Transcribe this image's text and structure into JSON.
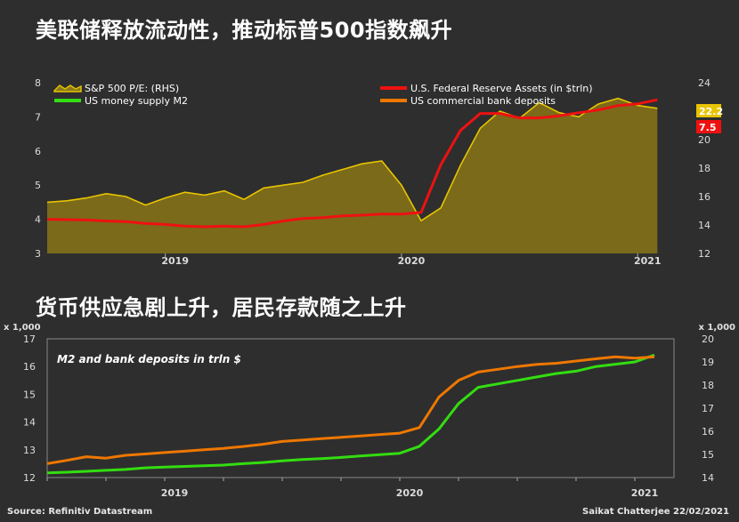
{
  "chart_data": [
    {
      "type": "area",
      "title": "美联储释放流动性，推动标普500指数飙升",
      "x_labels": [
        "2019",
        "2020",
        "2021"
      ],
      "left_axis": {
        "ticks": [
          3,
          4,
          5,
          6,
          7,
          8
        ],
        "ylim": [
          3,
          8
        ]
      },
      "right_axis": {
        "ticks": [
          12,
          14,
          16,
          18,
          20,
          22,
          24
        ],
        "ylim": [
          12,
          24
        ]
      },
      "last_value_badges": [
        {
          "text": "22.2",
          "color": "#e8c400"
        },
        {
          "text": "7.5",
          "color": "#ee1111"
        }
      ],
      "x": [
        "2018-07",
        "2018-08",
        "2018-09",
        "2018-10",
        "2018-11",
        "2018-12",
        "2019-01",
        "2019-02",
        "2019-03",
        "2019-04",
        "2019-05",
        "2019-06",
        "2019-07",
        "2019-08",
        "2019-09",
        "2019-10",
        "2019-11",
        "2019-12",
        "2020-01",
        "2020-02",
        "2020-03",
        "2020-04",
        "2020-05",
        "2020-06",
        "2020-07",
        "2020-08",
        "2020-09",
        "2020-10",
        "2020-11",
        "2020-12",
        "2021-01",
        "2021-02"
      ],
      "series": [
        {
          "name": "S&P 500 P/E: (RHS)",
          "type": "area",
          "axis": "right",
          "color": "#e8c400",
          "values": [
            15.6,
            15.7,
            15.9,
            16.2,
            16.0,
            15.4,
            15.9,
            16.3,
            16.1,
            16.4,
            15.8,
            16.6,
            16.8,
            17.0,
            17.5,
            17.9,
            18.3,
            18.5,
            16.8,
            14.3,
            15.2,
            18.2,
            20.8,
            22.0,
            21.5,
            22.6,
            21.9,
            21.6,
            22.5,
            22.9,
            22.4,
            22.2
          ]
        },
        {
          "name": "U.S. Federal Reserve Assets (in $trln)",
          "type": "line",
          "axis": "left",
          "color": "#ee1111",
          "values": [
            4.0,
            3.99,
            3.98,
            3.95,
            3.93,
            3.88,
            3.85,
            3.8,
            3.78,
            3.8,
            3.78,
            3.85,
            3.95,
            4.02,
            4.05,
            4.1,
            4.12,
            4.15,
            4.15,
            4.2,
            5.6,
            6.6,
            7.1,
            7.1,
            6.97,
            6.97,
            7.03,
            7.12,
            7.2,
            7.33,
            7.38,
            7.5
          ]
        }
      ],
      "legend_only": [
        {
          "name": "US money supply M2",
          "color": "#33dd11"
        },
        {
          "name": "US commercial bank deposits",
          "color": "#ee7700"
        }
      ]
    },
    {
      "type": "line",
      "title": "货币供应急剧上升，居民存款随之上升",
      "annotation": "M2 and bank deposits in trln $",
      "left_axis_unit": "x 1,000",
      "right_axis_unit": "x 1,000",
      "left_axis": {
        "ticks": [
          12,
          13,
          14,
          15,
          16,
          17
        ],
        "ylim": [
          12,
          17
        ]
      },
      "right_axis": {
        "ticks": [
          14,
          15,
          16,
          17,
          18,
          19,
          20
        ],
        "ylim": [
          14,
          20
        ]
      },
      "x_labels": [
        "2019",
        "2020",
        "2021"
      ],
      "x": [
        "2018-07",
        "2018-08",
        "2018-09",
        "2018-10",
        "2018-11",
        "2018-12",
        "2019-01",
        "2019-02",
        "2019-03",
        "2019-04",
        "2019-05",
        "2019-06",
        "2019-07",
        "2019-08",
        "2019-09",
        "2019-10",
        "2019-11",
        "2019-12",
        "2020-01",
        "2020-02",
        "2020-03",
        "2020-04",
        "2020-05",
        "2020-06",
        "2020-07",
        "2020-08",
        "2020-09",
        "2020-10",
        "2020-11",
        "2020-12",
        "2021-01",
        "2021-02"
      ],
      "series": [
        {
          "name": "US money supply M2",
          "axis": "right",
          "color": "#33dd11",
          "values": [
            14.2,
            14.23,
            14.27,
            14.31,
            14.35,
            14.42,
            14.45,
            14.48,
            14.51,
            14.54,
            14.6,
            14.65,
            14.72,
            14.78,
            14.82,
            14.87,
            14.93,
            14.99,
            15.05,
            15.35,
            16.1,
            17.2,
            17.9,
            18.05,
            18.2,
            18.35,
            18.5,
            18.6,
            18.8,
            18.9,
            19.0,
            19.3
          ]
        },
        {
          "name": "US commercial bank deposits",
          "axis": "left",
          "color": "#ee7700",
          "values": [
            12.5,
            12.62,
            12.75,
            12.7,
            12.8,
            12.85,
            12.9,
            12.95,
            13.0,
            13.05,
            13.12,
            13.2,
            13.3,
            13.35,
            13.4,
            13.45,
            13.5,
            13.55,
            13.6,
            13.8,
            14.9,
            15.5,
            15.8,
            15.9,
            16.0,
            16.08,
            16.12,
            16.2,
            16.28,
            16.35,
            16.3,
            16.35
          ]
        }
      ]
    }
  ],
  "footer": {
    "source": "Source: Refinitiv Datastream",
    "author": "Saikat Chatterjee 22/02/2021"
  }
}
